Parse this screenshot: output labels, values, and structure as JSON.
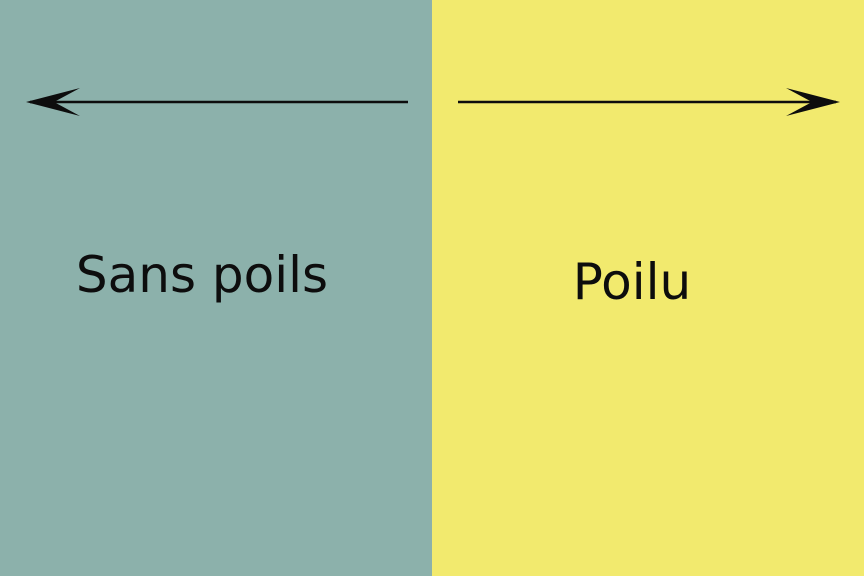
{
  "colors": {
    "left_background": "#8cb1ab",
    "right_background": "#f2ea6e",
    "arrow": "#0d0d0d"
  },
  "left": {
    "label": "Sans poils",
    "arrow_direction": "left"
  },
  "right": {
    "label": "Poilu",
    "arrow_direction": "right"
  }
}
